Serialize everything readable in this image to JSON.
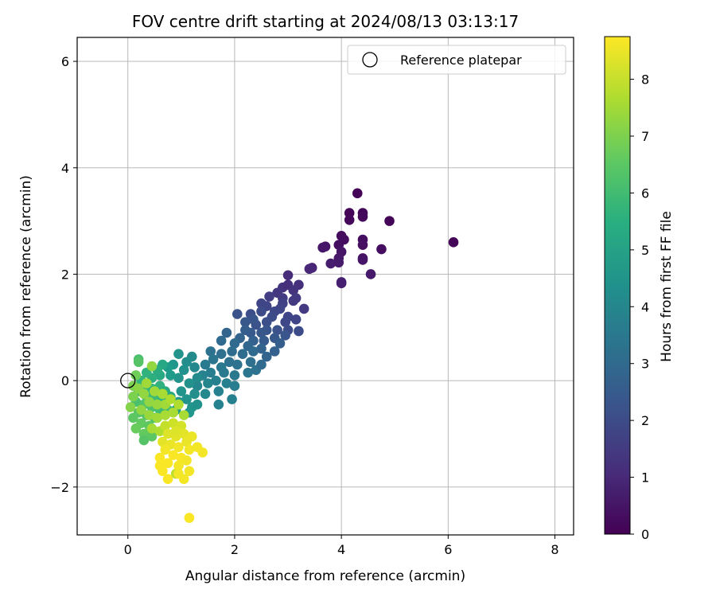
{
  "chart_data": {
    "type": "scatter",
    "title": "FOV centre drift starting at 2024/08/13 03:13:17",
    "xlabel": "Angular distance from reference (arcmin)",
    "ylabel": "Rotation from reference (arcmin)",
    "xlim": [
      -0.95,
      8.35
    ],
    "ylim": [
      -2.9,
      6.45
    ],
    "xticks": [
      0,
      2,
      4,
      6,
      8
    ],
    "yticks": [
      -2,
      0,
      2,
      4,
      6
    ],
    "grid": true,
    "legend": {
      "placement": "top-right",
      "entries": [
        "Reference platepar"
      ]
    },
    "colorbar": {
      "label": "Hours from first FF file",
      "colormap": "viridis",
      "range": [
        0,
        8.75
      ],
      "ticks": [
        0,
        1,
        2,
        3,
        4,
        5,
        6,
        7,
        8
      ]
    },
    "reference_point": {
      "x": 0.0,
      "y": 0.0
    },
    "series": [
      {
        "points": [
          [
            4.3,
            3.52,
            0.05
          ],
          [
            4.15,
            3.15,
            0.1
          ],
          [
            4.4,
            3.15,
            0.12
          ],
          [
            4.9,
            3.0,
            0.08
          ],
          [
            4.15,
            3.02,
            0.15
          ],
          [
            4.4,
            3.08,
            0.2
          ],
          [
            6.1,
            2.6,
            0.1
          ],
          [
            4.0,
            2.72,
            0.25
          ],
          [
            4.05,
            2.65,
            0.3
          ],
          [
            3.95,
            2.55,
            0.35
          ],
          [
            4.4,
            2.65,
            0.3
          ],
          [
            4.4,
            2.55,
            0.4
          ],
          [
            4.75,
            2.47,
            0.3
          ],
          [
            3.7,
            2.52,
            0.5
          ],
          [
            3.65,
            2.5,
            0.55
          ],
          [
            4.0,
            2.42,
            0.5
          ],
          [
            4.4,
            2.3,
            0.45
          ],
          [
            4.4,
            2.27,
            0.5
          ],
          [
            3.95,
            2.3,
            0.6
          ],
          [
            3.8,
            2.2,
            0.7
          ],
          [
            3.95,
            2.22,
            0.65
          ],
          [
            3.45,
            2.12,
            0.9
          ],
          [
            3.4,
            2.1,
            0.95
          ],
          [
            4.55,
            2.0,
            0.6
          ],
          [
            4.0,
            1.83,
            0.7
          ],
          [
            4.0,
            1.85,
            0.75
          ],
          [
            3.0,
            1.98,
            1.1
          ],
          [
            3.2,
            1.8,
            1.2
          ],
          [
            2.9,
            1.75,
            1.3
          ],
          [
            3.0,
            1.8,
            1.2
          ],
          [
            3.1,
            1.7,
            1.3
          ],
          [
            2.8,
            1.65,
            1.4
          ],
          [
            3.3,
            1.35,
            1.5
          ],
          [
            2.9,
            1.55,
            1.5
          ],
          [
            3.1,
            1.5,
            1.5
          ],
          [
            2.65,
            1.58,
            1.6
          ],
          [
            3.15,
            1.55,
            1.5
          ],
          [
            2.9,
            1.45,
            1.7
          ],
          [
            2.5,
            1.45,
            1.8
          ],
          [
            2.6,
            1.4,
            1.8
          ],
          [
            2.85,
            1.35,
            1.8
          ],
          [
            2.75,
            1.3,
            1.9
          ],
          [
            2.5,
            1.3,
            2.0
          ],
          [
            2.3,
            1.25,
            2.1
          ],
          [
            2.05,
            1.25,
            2.2
          ],
          [
            3.0,
            1.2,
            1.8
          ],
          [
            2.95,
            1.1,
            1.9
          ],
          [
            2.7,
            1.2,
            2.0
          ],
          [
            2.6,
            1.1,
            2.1
          ],
          [
            2.4,
            1.05,
            2.2
          ],
          [
            2.35,
            1.15,
            2.3
          ],
          [
            2.2,
            1.1,
            2.4
          ],
          [
            3.15,
            1.15,
            1.8
          ],
          [
            3.0,
            0.95,
            2.0
          ],
          [
            2.8,
            0.95,
            2.2
          ],
          [
            2.6,
            0.95,
            2.3
          ],
          [
            2.5,
            0.9,
            2.4
          ],
          [
            2.3,
            0.9,
            2.5
          ],
          [
            2.2,
            0.95,
            2.6
          ],
          [
            3.2,
            0.93,
            2.0
          ],
          [
            2.95,
            0.85,
            2.3
          ],
          [
            2.75,
            0.8,
            2.4
          ],
          [
            2.55,
            0.75,
            2.5
          ],
          [
            2.35,
            0.75,
            2.7
          ],
          [
            2.1,
            0.8,
            2.8
          ],
          [
            1.85,
            0.9,
            2.8
          ],
          [
            1.75,
            0.75,
            3.0
          ],
          [
            2.0,
            0.7,
            3.0
          ],
          [
            2.25,
            0.65,
            2.9
          ],
          [
            2.5,
            0.6,
            2.8
          ],
          [
            2.85,
            0.7,
            2.6
          ],
          [
            2.75,
            0.55,
            2.7
          ],
          [
            2.6,
            0.45,
            2.8
          ],
          [
            2.35,
            0.55,
            3.0
          ],
          [
            2.15,
            0.5,
            3.1
          ],
          [
            1.95,
            0.55,
            3.1
          ],
          [
            1.75,
            0.5,
            3.2
          ],
          [
            1.55,
            0.55,
            3.3
          ],
          [
            1.6,
            0.4,
            3.4
          ],
          [
            1.9,
            0.35,
            3.3
          ],
          [
            2.05,
            0.3,
            3.3
          ],
          [
            2.3,
            0.35,
            3.2
          ],
          [
            1.75,
            0.25,
            3.5
          ],
          [
            1.45,
            0.3,
            3.6
          ],
          [
            1.55,
            0.15,
            3.7
          ],
          [
            1.8,
            0.15,
            3.6
          ],
          [
            2.0,
            0.1,
            3.5
          ],
          [
            2.25,
            0.15,
            3.4
          ],
          [
            1.65,
            0.0,
            3.8
          ],
          [
            1.4,
            0.1,
            3.9
          ],
          [
            1.5,
            -0.05,
            4.0
          ],
          [
            1.85,
            -0.05,
            3.8
          ],
          [
            2.0,
            -0.1,
            3.7
          ],
          [
            2.4,
            0.2,
            3.3
          ],
          [
            2.5,
            0.3,
            3.0
          ],
          [
            1.3,
            -0.1,
            4.0
          ],
          [
            1.45,
            -0.25,
            4.1
          ],
          [
            1.7,
            -0.2,
            3.9
          ],
          [
            1.95,
            -0.35,
            3.8
          ],
          [
            1.7,
            -0.45,
            3.9
          ],
          [
            1.2,
            0.45,
            4.2
          ],
          [
            1.1,
            0.35,
            4.3
          ],
          [
            1.25,
            0.25,
            4.1
          ],
          [
            1.05,
            0.2,
            4.4
          ],
          [
            1.3,
            0.05,
            4.2
          ],
          [
            0.95,
            0.05,
            4.5
          ],
          [
            1.15,
            -0.05,
            4.4
          ],
          [
            1.25,
            -0.25,
            4.3
          ],
          [
            1.0,
            -0.2,
            4.5
          ],
          [
            0.85,
            0.3,
            4.6
          ],
          [
            0.95,
            0.5,
            4.5
          ],
          [
            0.75,
            0.25,
            4.8
          ],
          [
            0.8,
            0.1,
            4.8
          ],
          [
            1.1,
            -0.35,
            4.5
          ],
          [
            1.2,
            -0.5,
            4.5
          ],
          [
            0.95,
            -0.4,
            4.6
          ],
          [
            1.15,
            -0.6,
            4.6
          ],
          [
            1.3,
            -0.45,
            4.4
          ],
          [
            0.9,
            -0.55,
            4.8
          ],
          [
            0.65,
            0.3,
            5.2
          ],
          [
            0.6,
            0.1,
            5.3
          ],
          [
            0.55,
            0.2,
            5.4
          ],
          [
            0.45,
            0.05,
            5.5
          ],
          [
            0.35,
            0.15,
            5.6
          ],
          [
            0.25,
            0.0,
            5.8
          ],
          [
            0.3,
            -0.1,
            5.9
          ],
          [
            0.45,
            -0.15,
            5.8
          ],
          [
            0.6,
            -0.1,
            5.6
          ],
          [
            0.7,
            -0.2,
            5.4
          ],
          [
            0.8,
            -0.3,
            5.2
          ],
          [
            0.2,
            -0.2,
            6.0
          ],
          [
            0.35,
            -0.3,
            6.0
          ],
          [
            0.5,
            -0.35,
            6.0
          ],
          [
            0.65,
            -0.35,
            5.8
          ],
          [
            0.15,
            -0.4,
            6.2
          ],
          [
            0.3,
            -0.45,
            6.3
          ],
          [
            0.45,
            -0.5,
            6.2
          ],
          [
            0.6,
            -0.55,
            6.0
          ],
          [
            0.75,
            -0.55,
            5.9
          ],
          [
            0.2,
            -0.6,
            6.4
          ],
          [
            0.35,
            -0.65,
            6.4
          ],
          [
            0.5,
            -0.7,
            6.2
          ],
          [
            0.1,
            -0.7,
            6.5
          ],
          [
            0.25,
            -0.8,
            6.6
          ],
          [
            0.4,
            -0.85,
            6.5
          ],
          [
            0.15,
            -0.9,
            6.7
          ],
          [
            0.3,
            -1.0,
            6.6
          ],
          [
            0.45,
            -1.05,
            6.5
          ],
          [
            0.3,
            -1.12,
            6.4
          ],
          [
            0.2,
            0.4,
            6.2
          ],
          [
            0.2,
            0.35,
            6.4
          ],
          [
            0.15,
            0.1,
            6.8
          ],
          [
            0.1,
            -0.1,
            7.0
          ],
          [
            0.1,
            -0.3,
            7.0
          ],
          [
            0.05,
            -0.5,
            7.1
          ],
          [
            0.2,
            -0.15,
            7.2
          ],
          [
            0.3,
            -0.25,
            7.3
          ],
          [
            0.4,
            -0.4,
            7.3
          ],
          [
            0.55,
            -0.45,
            7.4
          ],
          [
            0.7,
            -0.45,
            7.5
          ],
          [
            0.25,
            -0.55,
            7.3
          ],
          [
            0.4,
            -0.65,
            7.4
          ],
          [
            0.55,
            -0.7,
            7.5
          ],
          [
            0.7,
            -0.65,
            7.6
          ],
          [
            0.85,
            -0.6,
            7.6
          ],
          [
            0.45,
            -0.9,
            7.6
          ],
          [
            0.6,
            -0.95,
            7.7
          ],
          [
            0.45,
            0.27,
            7.3
          ],
          [
            0.5,
            -0.2,
            7.5
          ],
          [
            0.65,
            -0.25,
            7.6
          ],
          [
            0.8,
            -0.35,
            7.7
          ],
          [
            0.95,
            -0.45,
            7.7
          ],
          [
            1.05,
            -0.65,
            7.6
          ],
          [
            0.35,
            -0.05,
            7.5
          ],
          [
            0.9,
            -1.75,
            7.9
          ],
          [
            0.7,
            -0.85,
            8.0
          ],
          [
            0.85,
            -0.8,
            8.1
          ],
          [
            1.0,
            -0.85,
            8.2
          ],
          [
            0.75,
            -1.0,
            8.3
          ],
          [
            0.9,
            -1.05,
            8.4
          ],
          [
            1.05,
            -1.0,
            8.4
          ],
          [
            0.65,
            -1.15,
            8.4
          ],
          [
            0.8,
            -1.2,
            8.5
          ],
          [
            0.95,
            -1.25,
            8.6
          ],
          [
            1.1,
            -1.15,
            8.5
          ],
          [
            0.7,
            -1.3,
            8.6
          ],
          [
            0.85,
            -1.4,
            8.7
          ],
          [
            1.0,
            -1.45,
            8.7
          ],
          [
            1.15,
            -1.3,
            8.6
          ],
          [
            0.6,
            -1.45,
            8.7
          ],
          [
            0.75,
            -1.55,
            8.7
          ],
          [
            0.95,
            -1.6,
            8.6
          ],
          [
            1.1,
            -1.5,
            8.6
          ],
          [
            0.65,
            -1.7,
            8.7
          ],
          [
            0.75,
            -1.85,
            8.7
          ],
          [
            0.95,
            -1.75,
            8.6
          ],
          [
            1.05,
            -1.85,
            8.6
          ],
          [
            1.15,
            -1.7,
            8.6
          ],
          [
            1.3,
            -1.25,
            8.6
          ],
          [
            1.4,
            -1.35,
            8.6
          ],
          [
            1.15,
            -2.58,
            8.7
          ],
          [
            1.2,
            -1.05,
            8.5
          ],
          [
            0.9,
            -0.95,
            8.3
          ],
          [
            0.6,
            -1.6,
            8.7
          ]
        ]
      }
    ]
  }
}
